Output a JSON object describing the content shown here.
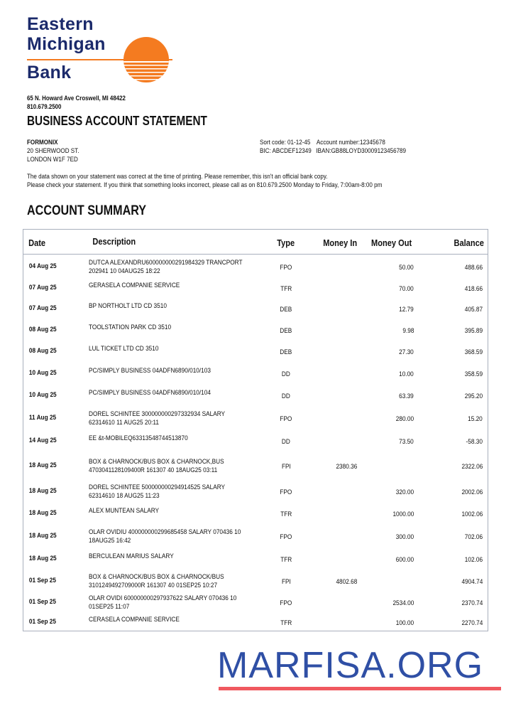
{
  "bank": {
    "logo_lines": [
      "Eastern",
      "Michigan",
      "Bank"
    ],
    "address": "65 N. Howard Ave Croswell, MI 48422",
    "phone": "810.679.2500",
    "logo_colors": {
      "text": "#1b2a6b",
      "sun": "#f47b20"
    }
  },
  "title": "BUSINESS ACCOUNT STATEMENT",
  "customer": {
    "name": "FORMONIX",
    "address_line1": "20 SHERWOOD ST.",
    "address_line2": "LONDON W1F 7ED"
  },
  "account": {
    "line1": "Sort code: 01-12-45    Account number:12345678",
    "line2": "BIC: ABCDEF12349   IBAN:GB88LOYD30009123456789"
  },
  "notice": {
    "line1": "The data shown on your statement was correct at the time of printing. Please remember, this isn't an official bank copy.",
    "line2": "Please check your statement. If you think that something looks incorrect, please call as on 810.679.2500 Monday to Friday, 7:00am-8:00 pm"
  },
  "summary_title": "ACCOUNT SUMMARY",
  "table": {
    "headers": {
      "date": "Date",
      "description": "Description",
      "type": "Type",
      "money_in": "Money In",
      "money_out": "Money Out",
      "balance": "Balance"
    },
    "rows": [
      {
        "date": "04 Aug 25",
        "desc1": "DUTCA ALEXANDRU600000000291984329 TRANCPORT",
        "desc2": "202941 10 04AUG25 18:22",
        "type": "FPO",
        "in": "",
        "out": "50.00",
        "balance": "488.66"
      },
      {
        "date": "07 Aug 25",
        "desc1": "GERASELA COMPANIE SERVICE",
        "desc2": "",
        "type": "TFR",
        "in": "",
        "out": "70.00",
        "balance": "418.66"
      },
      {
        "date": "07 Aug 25",
        "desc1": "BP NORTHOLT LTD CD 3510",
        "desc2": "",
        "type": "DEB",
        "in": "",
        "out": "12.79",
        "balance": "405.87"
      },
      {
        "date": "08 Aug 25",
        "desc1": "TOOLSTATION PARK CD 3510",
        "desc2": "",
        "type": "DEB",
        "in": "",
        "out": "9.98",
        "balance": "395.89"
      },
      {
        "date": "08 Aug 25",
        "desc1": "LUL TICKET LTD CD 3510",
        "desc2": "",
        "type": "DEB",
        "in": "",
        "out": "27.30",
        "balance": "368.59"
      },
      {
        "date": "10 Aug 25",
        "desc1": "PC/SIMPLY BUSINESS 04ADFN6890/010/103",
        "desc2": "",
        "type": "DD",
        "in": "",
        "out": "10.00",
        "balance": "358.59"
      },
      {
        "date": "10 Aug 25",
        "desc1": "PC/SIMPLY BUSINESS 04ADFN6890/010/104",
        "desc2": "",
        "type": "DD",
        "in": "",
        "out": "63.39",
        "balance": "295.20"
      },
      {
        "date": "11 Aug 25",
        "desc1": "DOREL SCHINTEE 300000000297332934 SALARY",
        "desc2": "62314610 11 AUG25 20:11",
        "type": "FPO",
        "in": "",
        "out": "280.00",
        "balance": "15.20"
      },
      {
        "date": "14 Aug 25",
        "desc1": "EE &t-MOBILEQ63313548744513870",
        "desc2": "",
        "type": "DD",
        "in": "",
        "out": "73.50",
        "balance": "-58.30"
      },
      {
        "date": "18 Aug 25",
        "desc1": "BOX & CHARNOCK/BUS BOX & CHARNOCK,BUS",
        "desc2": "4703041128109400R 161307 40 18AUG25 03:11",
        "type": "FPI",
        "in": "2380.36",
        "out": "",
        "balance": "2322.06"
      },
      {
        "date": "18 Aug 25",
        "desc1": "DOREL SCHINTEE 500000000294914525 SALARY",
        "desc2": "62314610 18 AUG25 11:23",
        "type": "FPO",
        "in": "",
        "out": "320.00",
        "balance": "2002.06"
      },
      {
        "date": "18 Aug 25",
        "desc1": "ALEX MUNTEAN SALARY",
        "desc2": "",
        "type": "TFR",
        "in": "",
        "out": "1000.00",
        "balance": "1002.06"
      },
      {
        "date": "18 Aug 25",
        "desc1": "OLAR OVIDIU 400000000299685458 SALARY 070436 10",
        "desc2": "18AUG25 16:42",
        "type": "FPO",
        "in": "",
        "out": "300.00",
        "balance": "702.06"
      },
      {
        "date": "18 Aug 25",
        "desc1": "BERCULEAN MARIUS SALARY",
        "desc2": "",
        "type": "TFR",
        "in": "",
        "out": "600.00",
        "balance": "102.06"
      },
      {
        "date": "01 Sep 25",
        "desc1": "BOX & CHARNOCK/BUS BOX & CHARNOCK/BUS",
        "desc2": "3101249492709000R 161307 40 01SEP25 10:27",
        "type": "FPI",
        "in": "4802.68",
        "out": "",
        "balance": "4904.74"
      },
      {
        "date": "01 Sep 25",
        "desc1": "OLAR OVIDI 600000000297937622 SALARY 070436 10",
        "desc2": "01SEP25 11:07",
        "type": "FPO",
        "in": "",
        "out": "2534.00",
        "balance": "2370.74"
      },
      {
        "date": "01 Sep 25",
        "desc1": "CERASELA COMPANIE SERVICE",
        "desc2": "",
        "type": "TFR",
        "in": "",
        "out": "100.00",
        "balance": "2270.74"
      }
    ]
  },
  "watermark": {
    "text": "MARFISA.ORG",
    "colors": {
      "text": "#2f4fa5",
      "underline": "#f0595f"
    }
  }
}
